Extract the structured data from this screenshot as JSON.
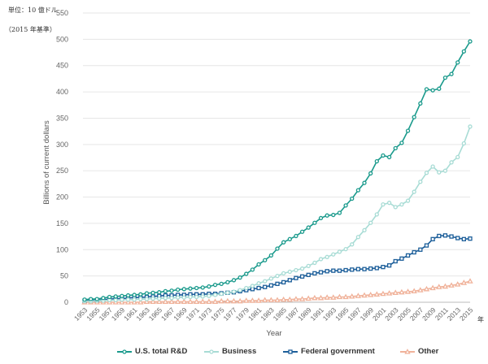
{
  "header": {
    "unit_line": "単位：10 億ドル",
    "base_line": "（2015 年基準）",
    "year_unit": "年"
  },
  "chart_data": {
    "type": "line",
    "ylabel": "Billions of current dollars",
    "xlabel": "Year",
    "ylim": [
      0,
      550
    ],
    "y_ticks": [
      0,
      50,
      100,
      150,
      200,
      250,
      300,
      350,
      400,
      450,
      500,
      550
    ],
    "x_ticks": [
      "1953",
      "1955",
      "1957",
      "1959",
      "1961",
      "1963",
      "1965",
      "1967",
      "1969",
      "1971",
      "1973",
      "1975",
      "1977",
      "1979",
      "1981",
      "1983",
      "1985",
      "1987",
      "1989",
      "1991",
      "1993",
      "1995",
      "1997",
      "1999",
      "2001",
      "2003",
      "2005",
      "2007",
      "2009",
      "2011",
      "2013",
      "2015"
    ],
    "grid": "horizontal",
    "legend_position": "bottom",
    "x": [
      1953,
      1954,
      1955,
      1956,
      1957,
      1958,
      1959,
      1960,
      1961,
      1962,
      1963,
      1964,
      1965,
      1966,
      1967,
      1968,
      1969,
      1970,
      1971,
      1972,
      1973,
      1974,
      1975,
      1976,
      1977,
      1978,
      1979,
      1980,
      1981,
      1982,
      1983,
      1984,
      1985,
      1986,
      1987,
      1988,
      1989,
      1990,
      1991,
      1992,
      1993,
      1994,
      1995,
      1996,
      1997,
      1998,
      1999,
      2000,
      2001,
      2002,
      2003,
      2004,
      2005,
      2006,
      2007,
      2008,
      2009,
      2010,
      2011,
      2012,
      2013,
      2014,
      2015
    ],
    "series": [
      {
        "name": "U.S. total R&D",
        "color": "#1a9a8c",
        "marker": "circle",
        "values": [
          5,
          6,
          6,
          8,
          10,
          11,
          12,
          13,
          14,
          15,
          17,
          18,
          19,
          21,
          22,
          24,
          25,
          26,
          27,
          28,
          30,
          33,
          35,
          38,
          42,
          47,
          54,
          62,
          72,
          80,
          89,
          102,
          114,
          120,
          126,
          134,
          142,
          151,
          160,
          165,
          166,
          170,
          184,
          197,
          213,
          227,
          245,
          268,
          279,
          276,
          293,
          303,
          326,
          352,
          378,
          405,
          403,
          406,
          427,
          434,
          456,
          477,
          496
        ]
      },
      {
        "name": "Business",
        "color": "#a8dcd5",
        "marker": "circle",
        "values": [
          2,
          2,
          3,
          3,
          4,
          4,
          5,
          5,
          5,
          6,
          6,
          7,
          7,
          8,
          8,
          9,
          9,
          10,
          10,
          11,
          12,
          14,
          16,
          18,
          20,
          23,
          27,
          31,
          36,
          40,
          45,
          50,
          55,
          58,
          61,
          64,
          69,
          75,
          82,
          86,
          91,
          96,
          101,
          110,
          124,
          137,
          151,
          167,
          186,
          189,
          181,
          186,
          193,
          210,
          229,
          246,
          258,
          247,
          250,
          266,
          276,
          302,
          334
        ]
      },
      {
        "name": "Federal government",
        "color": "#1d5f9a",
        "marker": "square",
        "values": [
          3,
          4,
          4,
          5,
          6,
          7,
          7,
          8,
          9,
          9,
          10,
          11,
          12,
          13,
          13,
          14,
          14,
          15,
          15,
          15,
          16,
          16,
          17,
          18,
          19,
          21,
          23,
          25,
          27,
          29,
          32,
          35,
          38,
          42,
          46,
          49,
          52,
          55,
          57,
          59,
          60,
          60,
          61,
          62,
          63,
          63,
          64,
          65,
          67,
          70,
          78,
          83,
          89,
          95,
          100,
          108,
          120,
          126,
          127,
          125,
          122,
          120,
          121
        ]
      },
      {
        "name": "Other",
        "color": "#f0b29a",
        "marker": "triangle",
        "values": [
          0,
          0,
          0,
          0,
          0,
          0,
          0,
          0,
          0,
          0,
          1,
          1,
          1,
          1,
          1,
          1,
          1,
          1,
          1,
          1,
          1,
          1,
          2,
          2,
          2,
          2,
          3,
          3,
          3,
          4,
          4,
          4,
          5,
          5,
          6,
          6,
          7,
          8,
          8,
          9,
          9,
          10,
          10,
          11,
          12,
          13,
          14,
          15,
          16,
          17,
          18,
          19,
          20,
          21,
          23,
          25,
          27,
          29,
          30,
          32,
          34,
          37,
          40
        ]
      }
    ]
  }
}
